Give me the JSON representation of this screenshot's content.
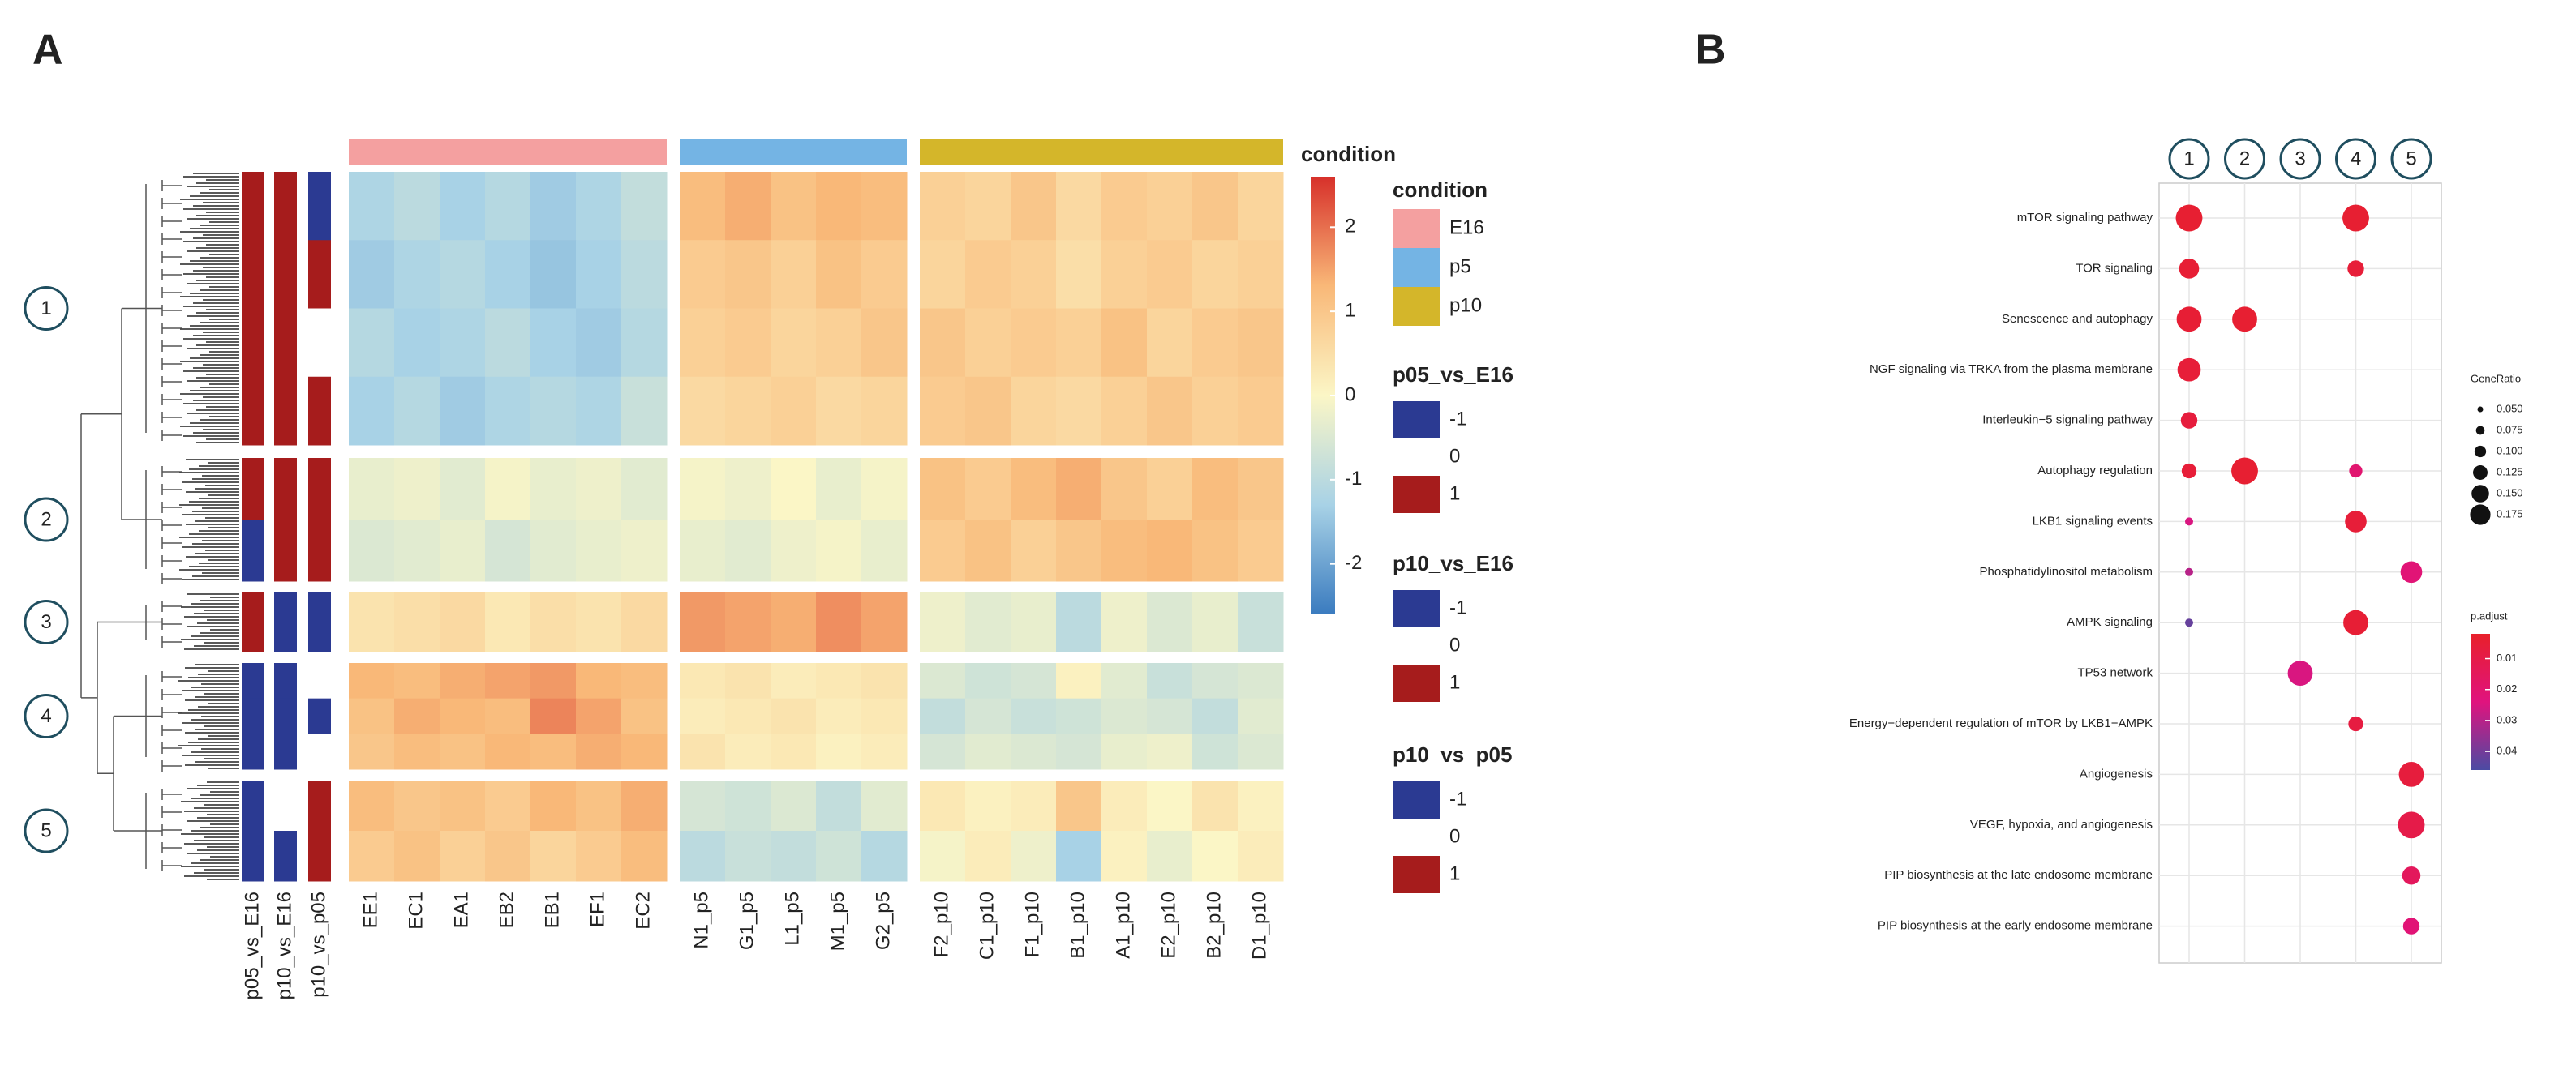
{
  "chart_data": [
    {
      "type": "heatmap",
      "panel_label": "A",
      "columns": [
        "EE1",
        "EC1",
        "EA1",
        "EB2",
        "EB1",
        "EF1",
        "EC2",
        "N1_p5",
        "G1_p5",
        "L1_p5",
        "M1_p5",
        "G2_p5",
        "F2_p10",
        "C1_p10",
        "F1_p10",
        "B1_p10",
        "A1_p10",
        "E2_p10",
        "B2_p10",
        "D1_p10"
      ],
      "column_condition": [
        "E16",
        "E16",
        "E16",
        "E16",
        "E16",
        "E16",
        "E16",
        "p5",
        "p5",
        "p5",
        "p5",
        "p5",
        "p10",
        "p10",
        "p10",
        "p10",
        "p10",
        "p10",
        "p10",
        "p10"
      ],
      "condition_title": "condition",
      "conditions": [
        {
          "name": "E16",
          "color": "#f4a0a0"
        },
        {
          "name": "p5",
          "color": "#74b4e4"
        },
        {
          "name": "p10",
          "color": "#d4b62a"
        }
      ],
      "row_clusters": [
        "1",
        "1",
        "1",
        "1",
        "2",
        "2",
        "3",
        "4",
        "4",
        "4",
        "5",
        "5"
      ],
      "values": [
        [
          -1.2,
          -1.0,
          -1.3,
          -1.1,
          -1.4,
          -1.2,
          -0.9,
          1.2,
          1.4,
          1.1,
          1.3,
          1.2,
          0.8,
          0.7,
          1.0,
          0.6,
          0.9,
          0.8,
          1.0,
          0.7
        ],
        [
          -1.4,
          -1.2,
          -1.1,
          -1.3,
          -1.5,
          -1.3,
          -1.0,
          0.9,
          1.0,
          0.8,
          1.1,
          0.9,
          0.7,
          0.9,
          0.8,
          0.5,
          0.8,
          0.9,
          0.7,
          0.8
        ],
        [
          -1.1,
          -1.3,
          -1.2,
          -1.0,
          -1.3,
          -1.4,
          -1.1,
          0.8,
          0.9,
          0.7,
          0.8,
          1.0,
          1.0,
          0.8,
          0.9,
          0.8,
          1.1,
          0.7,
          0.9,
          1.0
        ],
        [
          -1.3,
          -1.1,
          -1.4,
          -1.2,
          -1.1,
          -1.2,
          -0.8,
          0.6,
          0.7,
          0.8,
          0.6,
          0.7,
          0.9,
          1.0,
          0.7,
          0.6,
          0.8,
          1.0,
          0.8,
          0.9
        ],
        [
          -0.3,
          -0.2,
          -0.4,
          -0.1,
          -0.3,
          -0.2,
          -0.4,
          -0.1,
          -0.2,
          0.0,
          -0.3,
          -0.1,
          1.1,
          0.9,
          1.2,
          1.4,
          1.0,
          0.8,
          1.2,
          1.0
        ],
        [
          -0.5,
          -0.4,
          -0.3,
          -0.6,
          -0.4,
          -0.3,
          -0.2,
          -0.3,
          -0.4,
          -0.2,
          -0.1,
          -0.3,
          0.9,
          1.1,
          0.8,
          1.0,
          1.2,
          1.3,
          1.1,
          0.9
        ],
        [
          0.4,
          0.5,
          0.6,
          0.3,
          0.5,
          0.4,
          0.6,
          1.6,
          1.5,
          1.4,
          1.7,
          1.5,
          -0.2,
          -0.4,
          -0.3,
          -1.0,
          -0.2,
          -0.5,
          -0.3,
          -0.8
        ],
        [
          1.3,
          1.2,
          1.4,
          1.5,
          1.6,
          1.3,
          1.2,
          0.3,
          0.4,
          0.2,
          0.3,
          0.4,
          -0.5,
          -0.7,
          -0.6,
          0.1,
          -0.4,
          -0.8,
          -0.6,
          -0.5
        ],
        [
          1.1,
          1.4,
          1.3,
          1.2,
          1.8,
          1.5,
          1.1,
          0.2,
          0.3,
          0.4,
          0.2,
          0.3,
          -0.9,
          -0.6,
          -0.8,
          -0.7,
          -0.5,
          -0.6,
          -0.9,
          -0.4
        ],
        [
          1.0,
          1.2,
          1.1,
          1.3,
          1.2,
          1.4,
          1.3,
          0.4,
          0.2,
          0.3,
          0.1,
          0.2,
          -0.6,
          -0.4,
          -0.5,
          -0.6,
          -0.3,
          -0.2,
          -0.7,
          -0.5
        ],
        [
          1.2,
          1.0,
          1.1,
          0.9,
          1.3,
          1.1,
          1.4,
          -0.6,
          -0.7,
          -0.5,
          -0.9,
          -0.4,
          0.3,
          0.1,
          0.2,
          1.0,
          0.2,
          0.0,
          0.4,
          0.1
        ],
        [
          0.9,
          1.1,
          0.8,
          1.0,
          0.7,
          0.9,
          1.2,
          -1.0,
          -0.8,
          -0.9,
          -0.7,
          -1.1,
          -0.1,
          0.2,
          -0.2,
          -1.3,
          0.1,
          -0.3,
          0.0,
          0.2
        ]
      ],
      "colorbar_title": "condition",
      "clim": [
        -2.6,
        2.6
      ],
      "cticks": [
        -2,
        -1,
        0,
        1,
        2
      ],
      "colors": [
        "#3a7bbf",
        "#a8d2e6",
        "#fbf6c6",
        "#f9b878",
        "#d7302a"
      ],
      "row_annotations": [
        {
          "name": "p05_vs_E16",
          "values": [
            1,
            1,
            1,
            1,
            1,
            -1,
            1,
            -1,
            -1,
            -1,
            -1,
            -1
          ]
        },
        {
          "name": "p10_vs_E16",
          "values": [
            1,
            1,
            1,
            1,
            1,
            1,
            -1,
            -1,
            -1,
            -1,
            0,
            -1
          ]
        },
        {
          "name": "p10_vs_p05",
          "values": [
            -1,
            1,
            0,
            1,
            1,
            1,
            -1,
            0,
            -1,
            0,
            1,
            1
          ]
        }
      ],
      "annotation_levels": [
        {
          "value": -1,
          "color": "#2b3a92"
        },
        {
          "value": 0,
          "color": "#ffffff"
        },
        {
          "value": 1,
          "color": "#a61c1c"
        }
      ]
    },
    {
      "type": "dot",
      "panel_label": "B",
      "x": [
        "1",
        "2",
        "3",
        "4",
        "5"
      ],
      "categories": [
        "mTOR signaling pathway",
        "TOR signaling",
        "Senescence and autophagy",
        "NGF signaling via TRKA from the plasma membrane",
        "Interleukin−5 signaling pathway",
        "Autophagy regulation",
        "LKB1 signaling events",
        "Phosphatidylinositol metabolism",
        "AMPK signaling",
        "TP53 network",
        "Energy−dependent regulation of mTOR by LKB1−AMPK",
        "Angiogenesis",
        "VEGF, hypoxia, and angiogenesis",
        "PIP biosynthesis at the late endosome membrane",
        "PIP biosynthesis at the early endosome membrane"
      ],
      "gene_ratio": [
        [
          0.16,
          null,
          null,
          0.16,
          null
        ],
        [
          0.12,
          null,
          null,
          0.1,
          null
        ],
        [
          0.15,
          0.15,
          null,
          null,
          null
        ],
        [
          0.14,
          null,
          null,
          null,
          null
        ],
        [
          0.1,
          null,
          null,
          null,
          null
        ],
        [
          0.09,
          0.16,
          null,
          0.08,
          null
        ],
        [
          0.05,
          null,
          null,
          0.13,
          null
        ],
        [
          0.05,
          null,
          null,
          null,
          0.13
        ],
        [
          0.05,
          null,
          null,
          0.15,
          null
        ],
        [
          null,
          null,
          0.15,
          null,
          null
        ],
        [
          null,
          null,
          null,
          0.09,
          null
        ],
        [
          null,
          null,
          null,
          null,
          0.15
        ],
        [
          null,
          null,
          null,
          null,
          0.16
        ],
        [
          null,
          null,
          null,
          null,
          0.11
        ],
        [
          null,
          null,
          null,
          null,
          0.1
        ]
      ],
      "p_adjust": [
        [
          0.004,
          null,
          null,
          0.004,
          null
        ],
        [
          0.005,
          null,
          null,
          0.006,
          null
        ],
        [
          0.005,
          0.004,
          null,
          null,
          null
        ],
        [
          0.006,
          null,
          null,
          null,
          null
        ],
        [
          0.007,
          null,
          null,
          null,
          null
        ],
        [
          0.006,
          0.004,
          null,
          0.02,
          null
        ],
        [
          0.025,
          null,
          null,
          0.006,
          null
        ],
        [
          0.03,
          null,
          null,
          null,
          0.022
        ],
        [
          0.042,
          null,
          null,
          0.005,
          null
        ],
        [
          null,
          null,
          0.025,
          null,
          null
        ],
        [
          null,
          null,
          null,
          0.008,
          null
        ],
        [
          null,
          null,
          null,
          null,
          0.007
        ],
        [
          null,
          null,
          null,
          null,
          0.01
        ],
        [
          null,
          null,
          null,
          null,
          0.015
        ],
        [
          null,
          null,
          null,
          null,
          0.022
        ]
      ],
      "size_title": "GeneRatio",
      "size_ticks": [
        {
          "value": 0.05,
          "label": "0.050"
        },
        0.075,
        {
          "value": 0.1,
          "label": "0.100"
        },
        0.125,
        {
          "value": 0.15,
          "label": "0.150"
        },
        0.175
      ],
      "color_title": "p.adjust",
      "clim": [
        0.002,
        0.046
      ],
      "cticks": [
        0.01,
        0.02,
        0.03,
        0.04
      ],
      "colors": [
        "#e8202a",
        "#e0137e",
        "#4b4ba3"
      ]
    }
  ]
}
